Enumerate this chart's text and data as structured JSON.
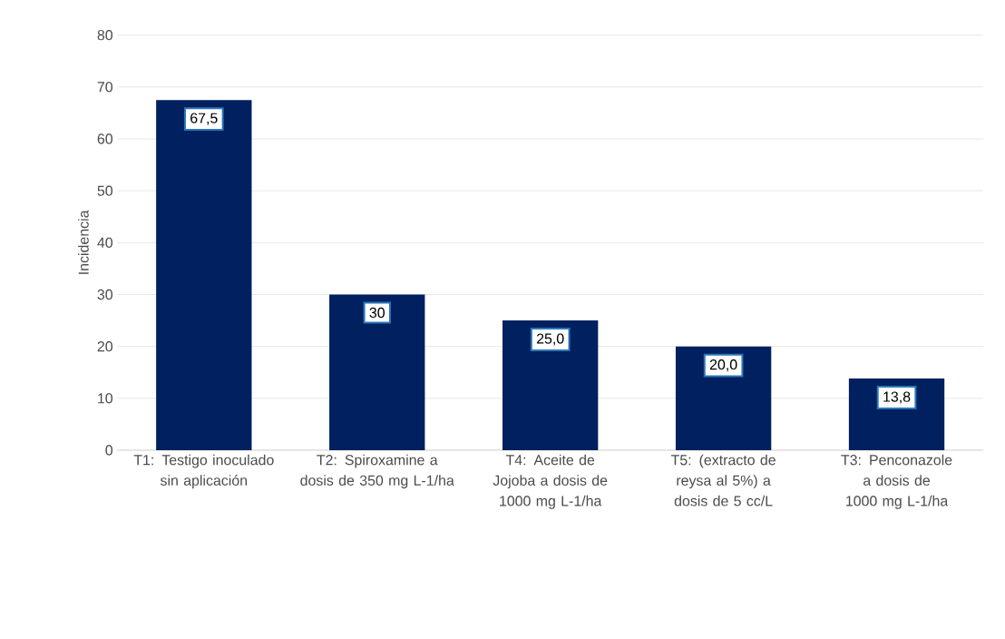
{
  "chart_data": {
    "type": "bar",
    "ylabel": "Incidencia",
    "categories": [
      "T1: Testigo inoculado sin aplicación",
      "T2: Spiroxamine a dosis de 350 mg L-1/ha",
      "T4: Aceite de Jojoba a dosis de 1000 mg L-1/ha",
      "T5: (extracto de reysa al 5%) a dosis de 5 cc/L",
      "T3: Penconazole a dosis de 1000 mg L-1/ha"
    ],
    "values": [
      67.5,
      30,
      25.0,
      20.0,
      13.8
    ],
    "value_labels": [
      "67,5",
      "30",
      "25,0",
      "20,0",
      "13,8"
    ],
    "color": "#002060",
    "ylim": [
      0,
      80
    ],
    "yticks": [
      0,
      10,
      20,
      30,
      40,
      50,
      60,
      70,
      80
    ],
    "grid": "y"
  }
}
